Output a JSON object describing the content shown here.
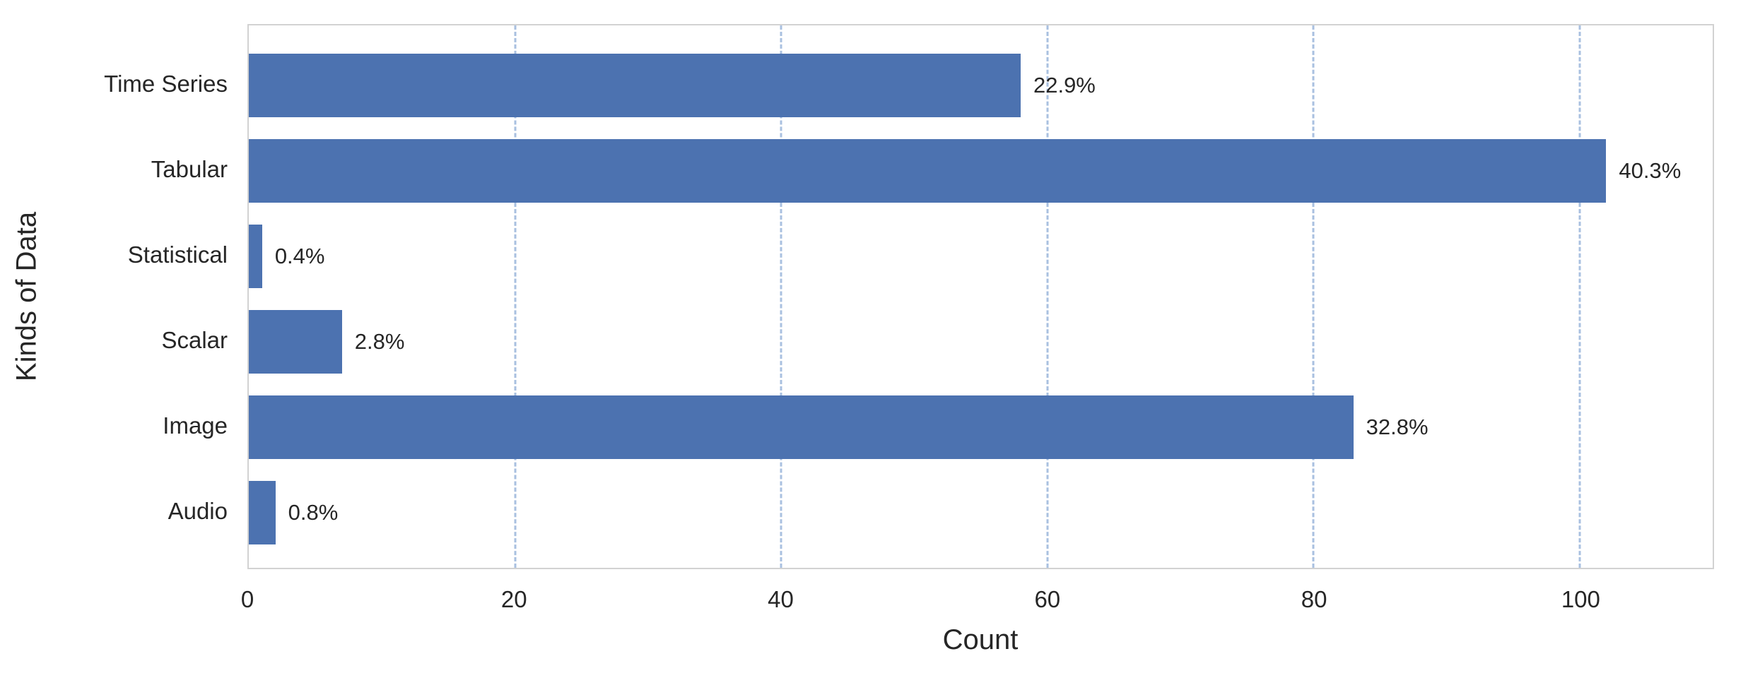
{
  "chart_data": {
    "type": "bar",
    "orientation": "horizontal",
    "title": "",
    "xlabel": "Count",
    "ylabel": "Kinds of Data",
    "categories": [
      "Time Series",
      "Tabular",
      "Statistical",
      "Scalar",
      "Image",
      "Audio"
    ],
    "values": [
      58,
      102,
      1,
      7,
      83,
      2
    ],
    "bar_labels": [
      "22.9%",
      "40.3%",
      "0.4%",
      "2.8%",
      "32.8%",
      "0.8%"
    ],
    "xticks": [
      0,
      20,
      40,
      60,
      80,
      100
    ],
    "xlim": [
      0,
      110
    ],
    "grid": "vertical-dashed",
    "legend": "none",
    "colors": {
      "bar": "#4c72b0",
      "gridline": "#a9c0e0",
      "spine": "#d2d2d2",
      "text": "#262626",
      "background": "#ffffff"
    }
  }
}
